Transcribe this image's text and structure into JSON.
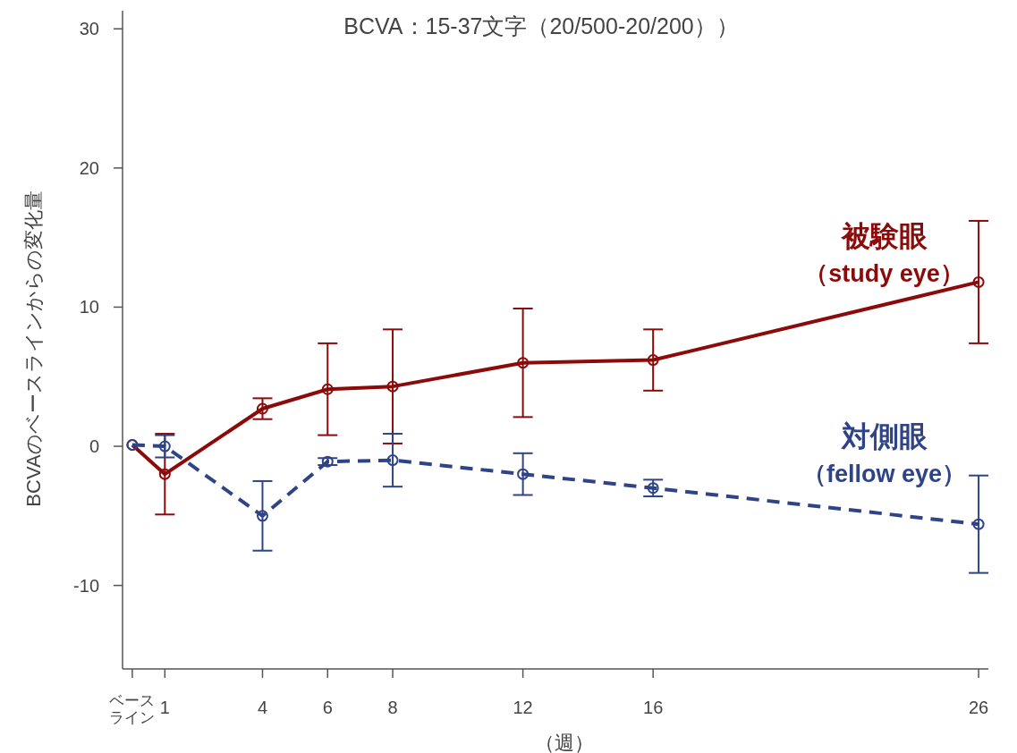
{
  "chart_data": {
    "type": "line",
    "title": "BCVA：15-37文字（20/500-20/200））",
    "xlabel": "（週）",
    "ylabel": "BCVAのベースラインからの変化量",
    "x": [
      0,
      1,
      4,
      6,
      8,
      12,
      16,
      26
    ],
    "xlim": [
      -0.3,
      26.3
    ],
    "xticks": [
      {
        "value": 0,
        "label": "ベースライン"
      },
      1,
      4,
      6,
      8,
      12,
      16,
      26
    ],
    "ylim": [
      -16,
      31.3
    ],
    "yticks": [
      -10,
      0,
      10,
      20,
      30
    ],
    "grid": false,
    "marker": "circle",
    "series": [
      {
        "name": "被験眼（study eye）",
        "color": "#8b0a0a",
        "line_style": "solid",
        "values": [
          0.1,
          -2,
          2.7,
          4.1,
          4.3,
          6,
          6.2,
          11.8
        ],
        "errors": [
          null,
          2.9,
          0.75,
          3.3,
          4.1,
          3.9,
          2.2,
          4.4
        ]
      },
      {
        "name": "対側眼（fellow eye）",
        "color": "#2e4487",
        "line_style": "dashed",
        "values": [
          0.1,
          0,
          -5,
          -1.1,
          -1,
          -2,
          -3,
          -5.6
        ],
        "errors": [
          null,
          0.8,
          2.5,
          0.25,
          1.9,
          1.5,
          0.6,
          3.5
        ]
      }
    ]
  }
}
